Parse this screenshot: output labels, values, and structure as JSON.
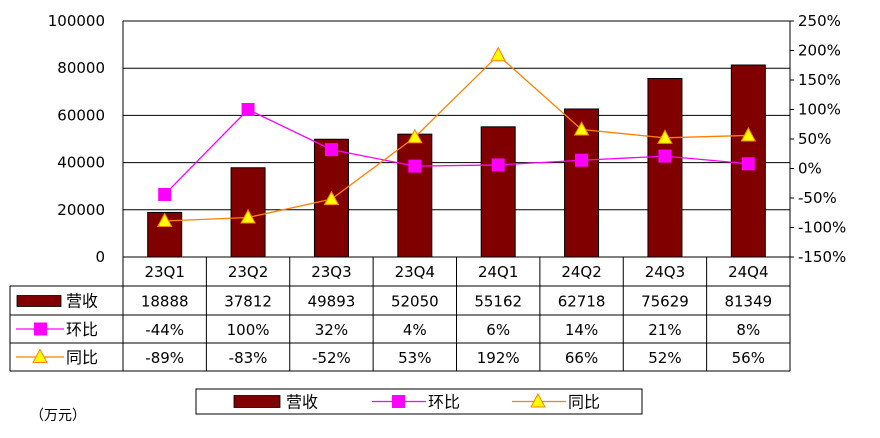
{
  "chart_data": {
    "type": "bar",
    "categories": [
      "23Q1",
      "23Q2",
      "23Q3",
      "23Q4",
      "24Q1",
      "24Q2",
      "24Q3",
      "24Q4"
    ],
    "series": [
      {
        "name": "营收",
        "kind": "bar",
        "axis": "left",
        "color": "#800000",
        "values": [
          18888,
          37812,
          49893,
          52050,
          55162,
          62718,
          75629,
          81349
        ],
        "labels": [
          "18888",
          "37812",
          "49893",
          "52050",
          "55162",
          "62718",
          "75629",
          "81349"
        ]
      },
      {
        "name": "环比",
        "kind": "line",
        "marker": "square",
        "axis": "right",
        "color": "#FF00FF",
        "values": [
          -44,
          100,
          32,
          4,
          6,
          14,
          21,
          8
        ],
        "labels": [
          "-44%",
          "100%",
          "32%",
          "4%",
          "6%",
          "14%",
          "21%",
          "8%"
        ]
      },
      {
        "name": "同比",
        "kind": "line",
        "marker": "triangle",
        "axis": "right",
        "color": "#FF8000",
        "marker_color": "#FFFF00",
        "values": [
          -89,
          -83,
          -52,
          53,
          192,
          66,
          52,
          56
        ],
        "labels": [
          "-89%",
          "-83%",
          "-52%",
          "53%",
          "192%",
          "66%",
          "52%",
          "56%"
        ]
      }
    ],
    "y_left": {
      "ylim": [
        0,
        100000
      ],
      "ticks": [
        "0",
        "20000",
        "40000",
        "60000",
        "80000",
        "100000"
      ]
    },
    "y_right": {
      "ylim": [
        -150,
        250
      ],
      "ticks": [
        "-150%",
        "-100%",
        "-50%",
        "0%",
        "50%",
        "100%",
        "150%",
        "200%",
        "250%"
      ]
    },
    "grid": "horizontal",
    "legend": "bottom",
    "data_table": true,
    "unit_note": "（万元）"
  }
}
